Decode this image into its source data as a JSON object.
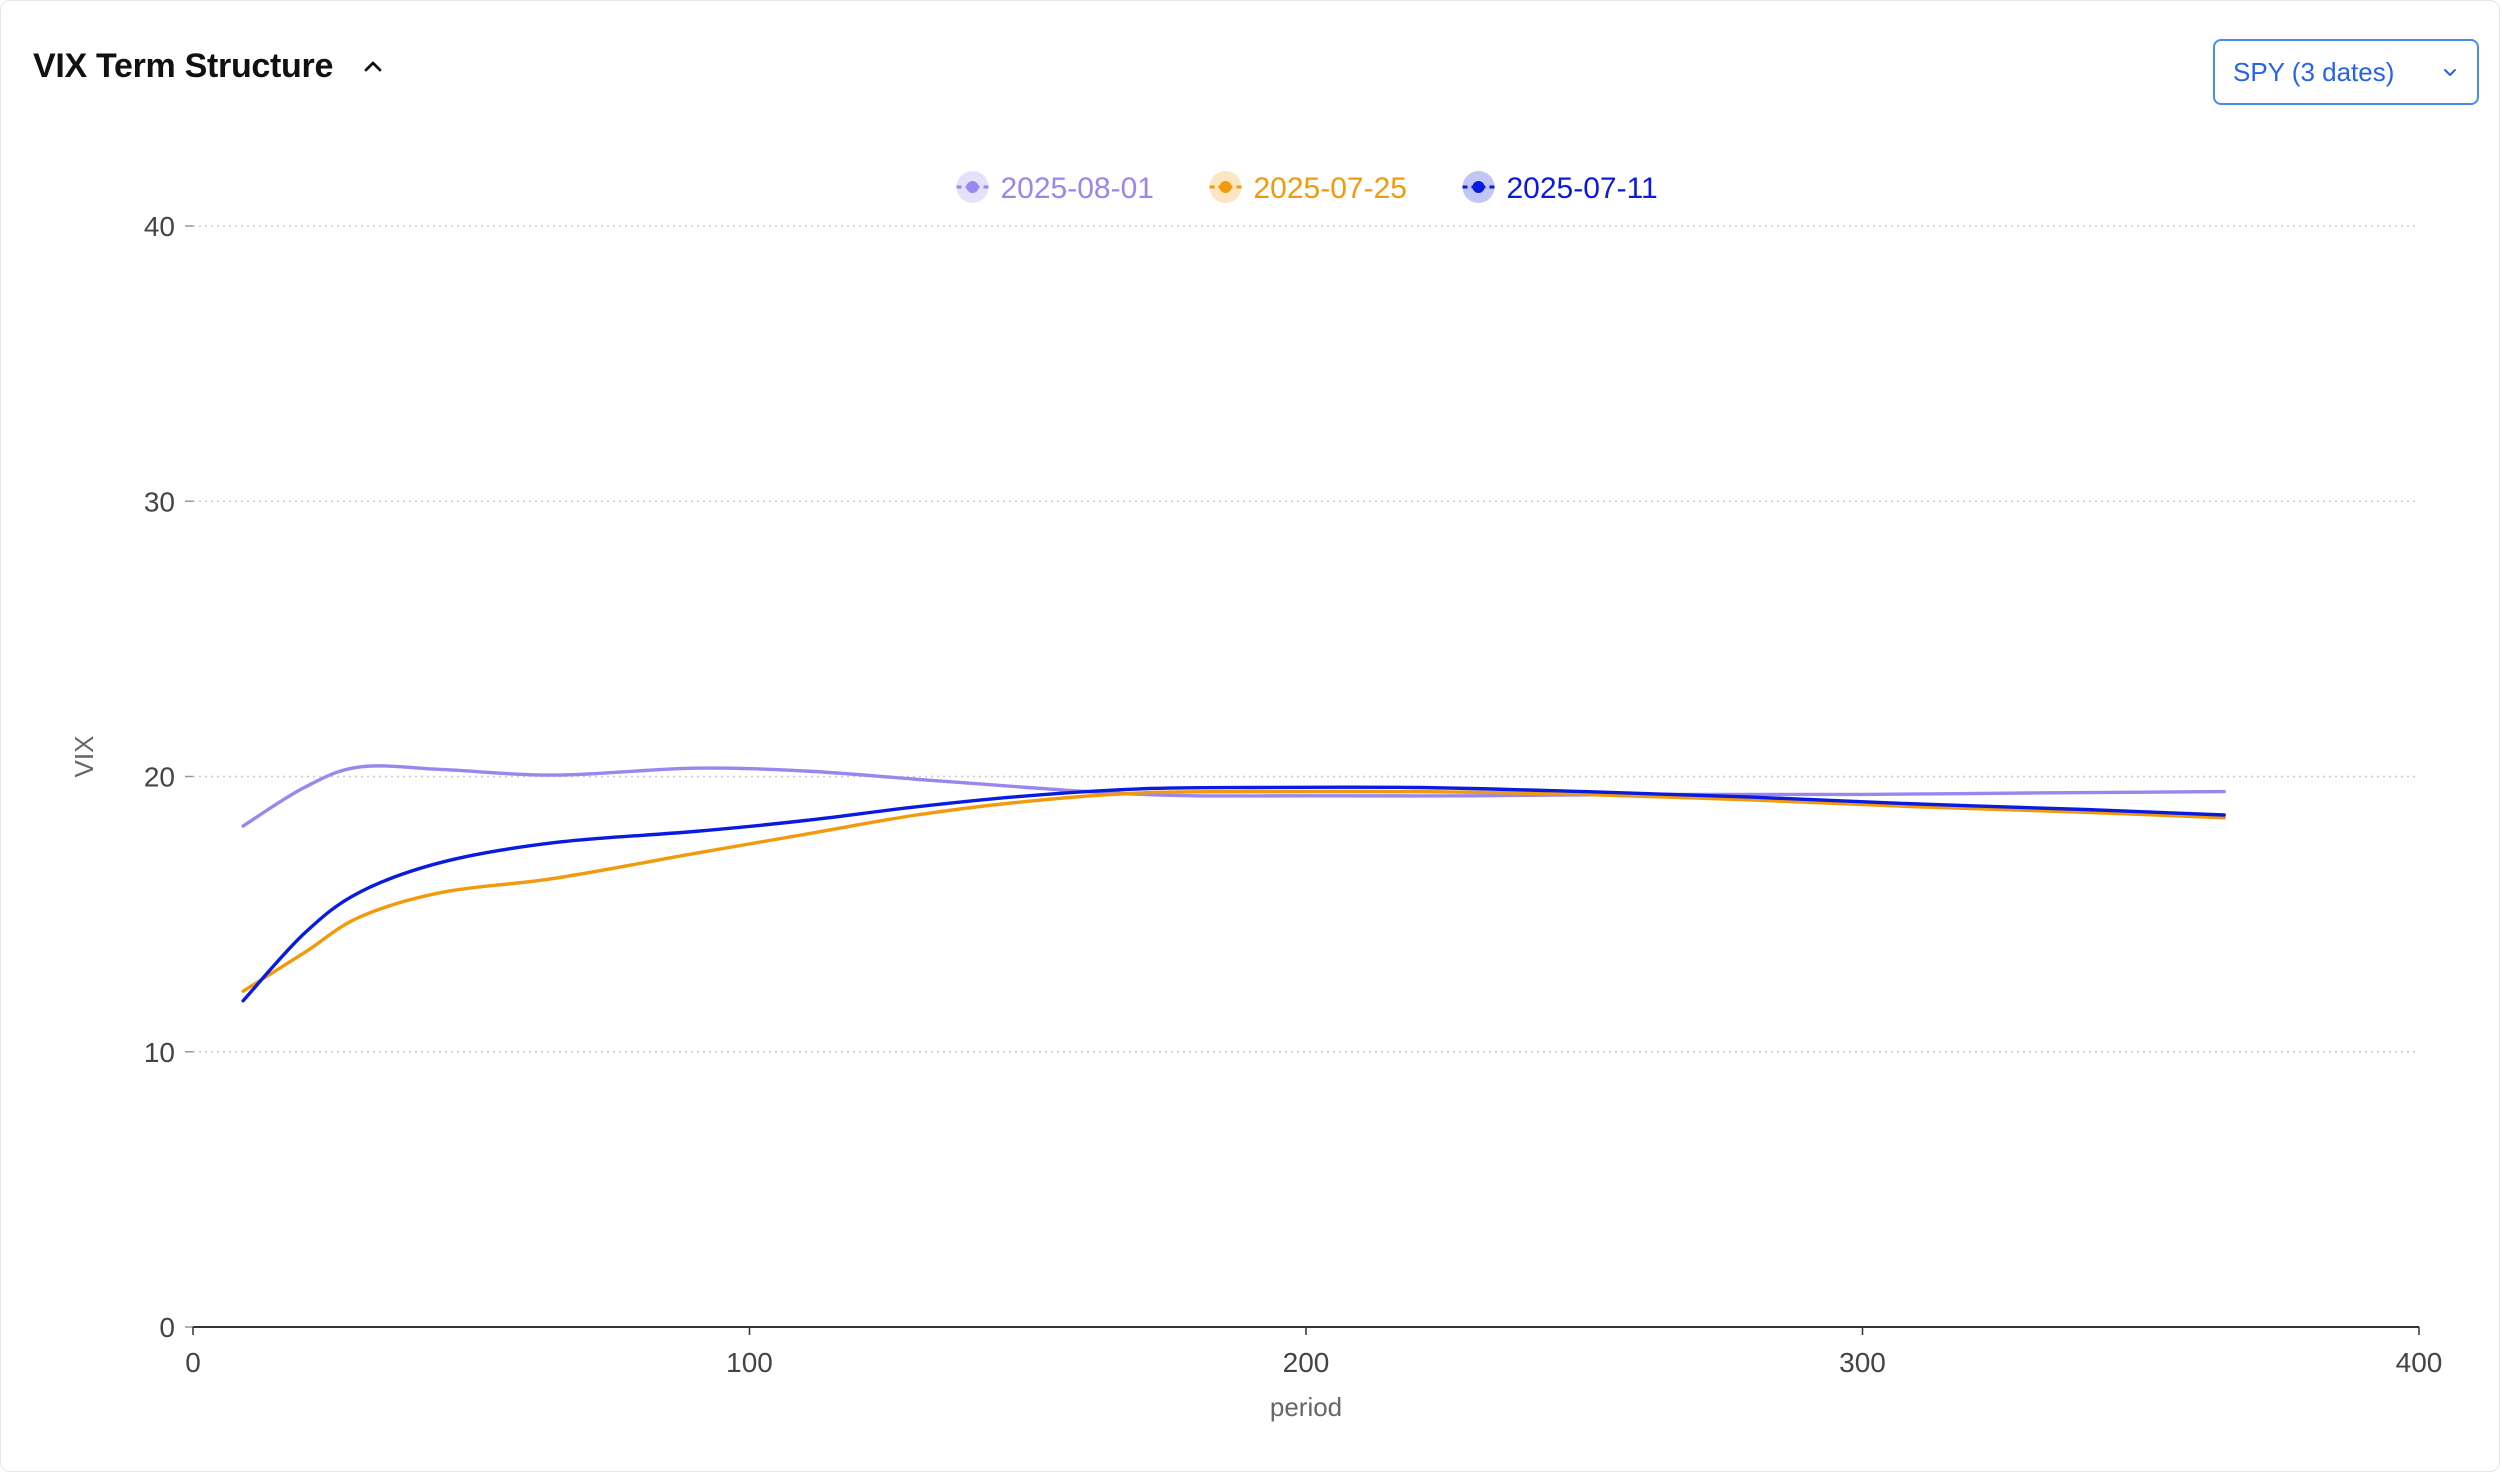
{
  "header": {
    "title": "VIX Term Structure"
  },
  "selector": {
    "value": "SPY (3 dates)"
  },
  "icons": {
    "collapse": "chevron-up-icon",
    "dropdown": "chevron-down-icon"
  },
  "chart_data": {
    "type": "line",
    "xlabel": "period",
    "ylabel": "VIX",
    "xlim": [
      0,
      400
    ],
    "ylim": [
      0,
      40
    ],
    "x_ticks": [
      0,
      100,
      200,
      300,
      400
    ],
    "y_ticks": [
      0,
      10,
      20,
      30,
      40
    ],
    "grid": "horizontal-dotted",
    "legend_position": "top-center",
    "series": [
      {
        "name": "2025-08-01",
        "color": "#9b86ee",
        "points": [
          [
            9,
            18.2
          ],
          [
            20,
            19.6
          ],
          [
            30,
            20.35
          ],
          [
            45,
            20.25
          ],
          [
            65,
            20.05
          ],
          [
            90,
            20.3
          ],
          [
            110,
            20.2
          ],
          [
            130,
            19.9
          ],
          [
            150,
            19.6
          ],
          [
            165,
            19.4
          ],
          [
            180,
            19.3
          ],
          [
            200,
            19.3
          ],
          [
            230,
            19.3
          ],
          [
            260,
            19.35
          ],
          [
            300,
            19.35
          ],
          [
            330,
            19.4
          ],
          [
            365,
            19.45
          ]
        ]
      },
      {
        "name": "2025-07-25",
        "color": "#f29a0c",
        "points": [
          [
            9,
            12.2
          ],
          [
            20,
            13.6
          ],
          [
            30,
            14.9
          ],
          [
            45,
            15.8
          ],
          [
            65,
            16.3
          ],
          [
            90,
            17.2
          ],
          [
            110,
            17.9
          ],
          [
            130,
            18.6
          ],
          [
            150,
            19.1
          ],
          [
            170,
            19.4
          ],
          [
            190,
            19.45
          ],
          [
            220,
            19.45
          ],
          [
            250,
            19.35
          ],
          [
            280,
            19.15
          ],
          [
            310,
            18.9
          ],
          [
            340,
            18.7
          ],
          [
            365,
            18.5
          ]
        ]
      },
      {
        "name": "2025-07-11",
        "color": "#0a1be0",
        "points": [
          [
            9,
            11.85
          ],
          [
            20,
            14.3
          ],
          [
            30,
            15.8
          ],
          [
            45,
            16.9
          ],
          [
            65,
            17.6
          ],
          [
            90,
            18.0
          ],
          [
            110,
            18.4
          ],
          [
            130,
            18.9
          ],
          [
            150,
            19.3
          ],
          [
            170,
            19.55
          ],
          [
            190,
            19.6
          ],
          [
            220,
            19.6
          ],
          [
            250,
            19.45
          ],
          [
            280,
            19.25
          ],
          [
            310,
            19.0
          ],
          [
            340,
            18.8
          ],
          [
            365,
            18.6
          ]
        ]
      }
    ]
  }
}
